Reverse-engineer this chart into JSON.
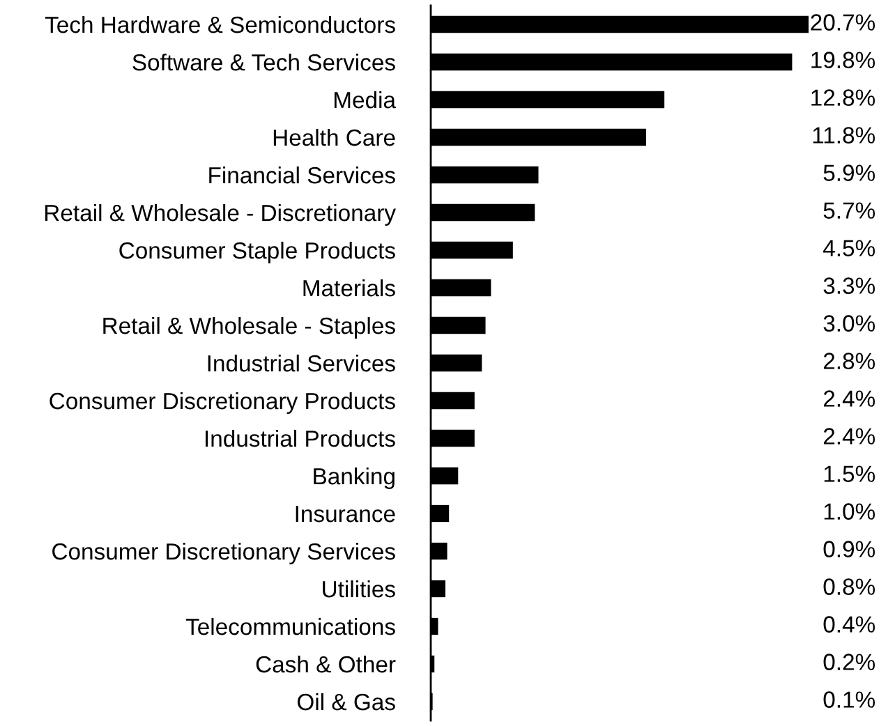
{
  "chart_data": {
    "type": "bar",
    "orientation": "horizontal",
    "color": "#000000",
    "xlim": [
      0,
      20.7
    ],
    "tick_labels": "y",
    "categories": [
      "Tech Hardware & Semiconductors",
      "Software & Tech Services",
      "Media",
      "Health Care",
      "Financial Services",
      "Retail & Wholesale - Discretionary",
      "Consumer Staple Products",
      "Materials",
      "Retail & Wholesale - Staples",
      "Industrial Services",
      "Consumer Discretionary Products",
      "Industrial Products",
      "Banking",
      "Insurance",
      "Consumer Discretionary Services",
      "Utilities",
      "Telecommunications",
      "Cash & Other",
      "Oil & Gas"
    ],
    "values": [
      20.7,
      19.8,
      12.8,
      11.8,
      5.9,
      5.7,
      4.5,
      3.3,
      3.0,
      2.8,
      2.4,
      2.4,
      1.5,
      1.0,
      0.9,
      0.8,
      0.4,
      0.2,
      0.1
    ],
    "value_labels": [
      "20.7%",
      "19.8%",
      "12.8%",
      "11.8%",
      "5.9%",
      "5.7%",
      "4.5%",
      "3.3%",
      "3.0%",
      "2.8%",
      "2.4%",
      "2.4%",
      "1.5%",
      "1.0%",
      "0.9%",
      "0.8%",
      "0.4%",
      "0.2%",
      "0.1%"
    ]
  }
}
